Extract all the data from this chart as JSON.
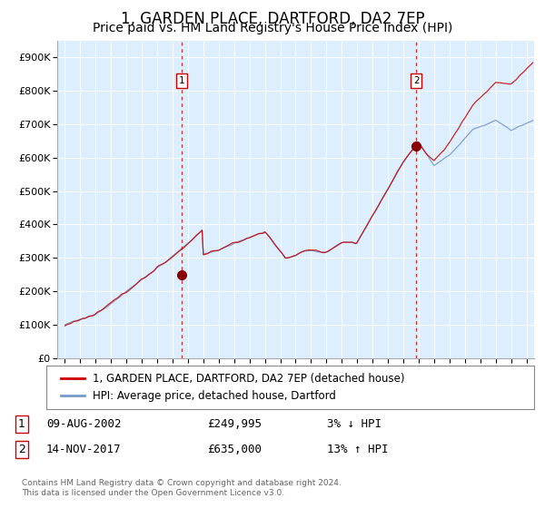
{
  "title": "1, GARDEN PLACE, DARTFORD, DA2 7EP",
  "subtitle": "Price paid vs. HM Land Registry's House Price Index (HPI)",
  "title_fontsize": 12,
  "subtitle_fontsize": 10,
  "bg_color": "#ddeeff",
  "grid_color": "#ffffff",
  "red_line_color": "#cc0000",
  "blue_line_color": "#7799cc",
  "marker1_year": 2002.6,
  "marker2_year": 2017.87,
  "marker1_value": 249995,
  "marker2_value": 635000,
  "vline_color": "#cc0000",
  "marker_color": "#880000",
  "legend_label1": "1, GARDEN PLACE, DARTFORD, DA2 7EP (detached house)",
  "legend_label2": "HPI: Average price, detached house, Dartford",
  "table_row1_num": "1",
  "table_row1_date": "09-AUG-2002",
  "table_row1_price": "£249,995",
  "table_row1_hpi": "3% ↓ HPI",
  "table_row2_num": "2",
  "table_row2_date": "14-NOV-2017",
  "table_row2_price": "£635,000",
  "table_row2_hpi": "13% ↑ HPI",
  "footer": "Contains HM Land Registry data © Crown copyright and database right 2024.\nThis data is licensed under the Open Government Licence v3.0.",
  "ylim": [
    0,
    950000
  ],
  "yticks": [
    0,
    100000,
    200000,
    300000,
    400000,
    500000,
    600000,
    700000,
    800000,
    900000
  ],
  "xstart": 1995,
  "xend": 2025
}
